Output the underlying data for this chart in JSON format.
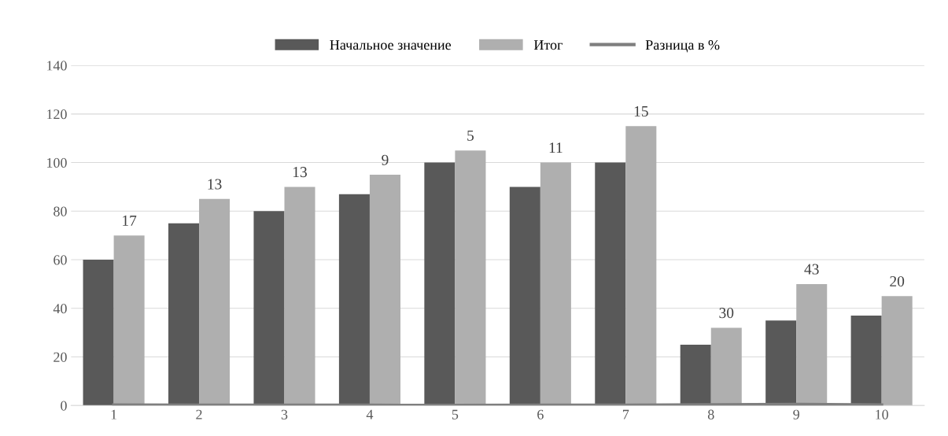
{
  "chart_data": {
    "type": "bar",
    "categories": [
      "1",
      "2",
      "3",
      "4",
      "5",
      "6",
      "7",
      "8",
      "9",
      "10"
    ],
    "series": [
      {
        "name": "Начальное значение",
        "color": "#595959",
        "values": [
          60,
          75,
          80,
          87,
          100,
          90,
          100,
          25,
          35,
          37
        ]
      },
      {
        "name": "Итог",
        "color": "#afafaf",
        "values": [
          70,
          85,
          90,
          95,
          105,
          100,
          115,
          32,
          50,
          45
        ]
      },
      {
        "name": "Разница в %",
        "type": "line",
        "color": "#7f7f7f",
        "values": [
          0.17,
          0.13,
          0.13,
          0.09,
          0.05,
          0.11,
          0.15,
          0.3,
          0.43,
          0.2
        ]
      }
    ],
    "annotations": [
      {
        "text": "17",
        "x": "1",
        "y": 70
      },
      {
        "text": "13",
        "x": "2",
        "y": 85
      },
      {
        "text": "13",
        "x": "3",
        "y": 90
      },
      {
        "text": "9",
        "x": "4",
        "y": 95
      },
      {
        "text": "5",
        "x": "5",
        "y": 105
      },
      {
        "text": "11",
        "x": "6",
        "y": 100
      },
      {
        "text": "15",
        "x": "7",
        "y": 115
      },
      {
        "text": "30",
        "x": "8",
        "y": 32
      },
      {
        "text": "43",
        "x": "9",
        "y": 50
      },
      {
        "text": "20",
        "x": "10",
        "y": 45
      }
    ],
    "ylim": [
      0,
      140
    ],
    "yticks": [
      0,
      20,
      40,
      60,
      80,
      100,
      120,
      140
    ],
    "grid": "y",
    "legend": "top",
    "marker": "none",
    "line_style": "solid"
  }
}
